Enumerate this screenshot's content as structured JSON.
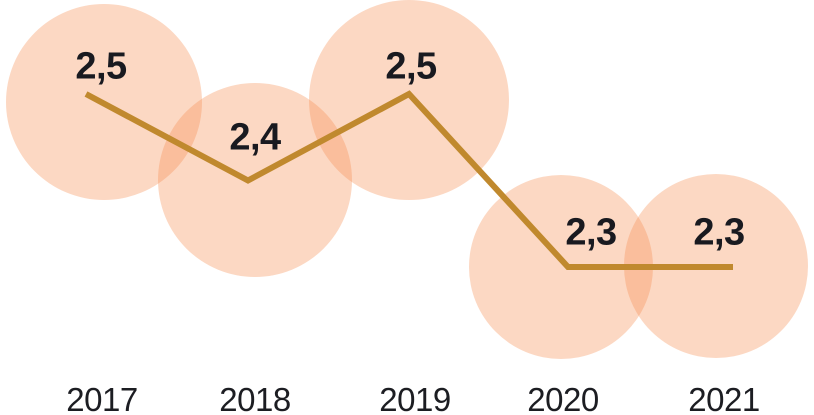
{
  "chart_data": {
    "type": "line",
    "categories": [
      "2017",
      "2018",
      "2019",
      "2020",
      "2021"
    ],
    "values": [
      2.5,
      2.4,
      2.5,
      2.3,
      2.3
    ],
    "value_labels": [
      "2,5",
      "2,4",
      "2,5",
      "2,3",
      "2,3"
    ],
    "decimal_separator": ",",
    "title": "",
    "xlabel": "",
    "ylabel": "",
    "ylim": [
      2.2,
      2.6
    ],
    "grid": false,
    "legend": false,
    "axes_visible": false,
    "marker_style": "large translucent overlapping circles",
    "colors": {
      "line": "#C0892E",
      "point_circle_fill": "#F69054",
      "point_circle_opacity": 0.35,
      "value_label_text": "#191A20",
      "year_label_text": "#1C1D22",
      "background": "#FFFFFF"
    }
  }
}
